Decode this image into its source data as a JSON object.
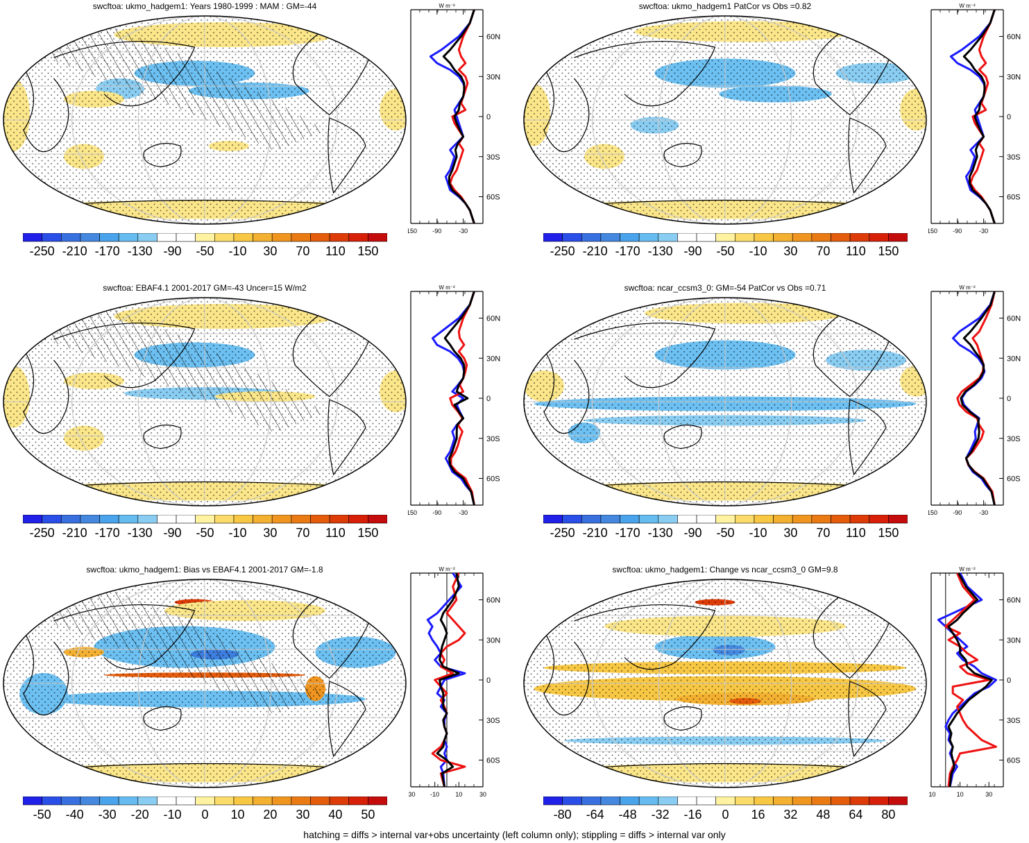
{
  "footer": "hatching = diffs > internal var+obs uncertainty (left column only); stippling = diffs > internal var only",
  "profile_unit": "W m⁻²",
  "lat_ticks": [
    "60N",
    "30N",
    "0",
    "30S",
    "60S"
  ],
  "colors": {
    "line_blue": "#1a1aff",
    "line_red": "#ee1111",
    "line_black": "#000000",
    "land": "#f8e08a"
  },
  "chart_data": [
    {
      "type": "heatmap",
      "title": "swcftoa: ukmo_hadgem1: Years 1980-1999 : MAM : GM=-44",
      "colorbar_labels": [
        "-250",
        "-210",
        "-170",
        "-130",
        "-90",
        "-50",
        "-10",
        "30",
        "70",
        "110",
        "150"
      ],
      "colorbar_colors": [
        "#2020e8",
        "#2a4ee8",
        "#3870e0",
        "#4488e0",
        "#4aa4ec",
        "#66bcf0",
        "#8acdf2",
        "#ffffff",
        "#ffffff",
        "#fff2a0",
        "#fbdc6a",
        "#f8c844",
        "#f4b030",
        "#f09620",
        "#ea7a14",
        "#e45c0c",
        "#dd3c08",
        "#d82008",
        "#c40c0c"
      ],
      "profile_ticks": [
        "-150",
        "-90",
        "-30"
      ],
      "profile_range": [
        -150,
        15
      ],
      "profile_zero_line": false,
      "profile": {
        "lat": [
          80,
          70,
          60,
          50,
          45,
          40,
          35,
          30,
          25,
          20,
          15,
          10,
          5,
          0,
          -5,
          -10,
          -15,
          -20,
          -25,
          -30,
          -35,
          -40,
          -45,
          -50,
          -55,
          -60,
          -65,
          -70,
          -80
        ],
        "blue": [
          -5,
          -15,
          -40,
          -80,
          -105,
          -90,
          -60,
          -40,
          -30,
          -25,
          -30,
          -40,
          -50,
          -45,
          -40,
          -35,
          -30,
          -45,
          -60,
          -50,
          -55,
          -60,
          -70,
          -65,
          -60,
          -40,
          -25,
          -15,
          -5
        ],
        "red": [
          -5,
          -15,
          -30,
          -40,
          -35,
          -25,
          -40,
          -25,
          -20,
          -25,
          -30,
          -35,
          -25,
          -55,
          -50,
          -40,
          -30,
          -40,
          -30,
          -35,
          -40,
          -45,
          -55,
          -60,
          -50,
          -35,
          -25,
          -15,
          -5
        ],
        "black": [
          -5,
          -15,
          -35,
          -60,
          -75,
          -60,
          -50,
          -35,
          -28,
          -28,
          -30,
          -38,
          -40,
          -50,
          -45,
          -38,
          -30,
          -42,
          -48,
          -45,
          -50,
          -55,
          -62,
          -62,
          -55,
          -38,
          -25,
          -15,
          -5
        ]
      }
    },
    {
      "type": "heatmap",
      "title": "swcftoa: ukmo_hadgem1 PatCor vs Obs =0.82",
      "colorbar_labels": [
        "-250",
        "-210",
        "-170",
        "-130",
        "-90",
        "-50",
        "-10",
        "30",
        "70",
        "110",
        "150"
      ],
      "colorbar_colors": [
        "#2020e8",
        "#2a4ee8",
        "#3870e0",
        "#4488e0",
        "#4aa4ec",
        "#66bcf0",
        "#8acdf2",
        "#ffffff",
        "#ffffff",
        "#fff2a0",
        "#fbdc6a",
        "#f8c844",
        "#f4b030",
        "#f09620",
        "#ea7a14",
        "#e45c0c",
        "#dd3c08",
        "#d82008",
        "#c40c0c"
      ],
      "profile_ticks": [
        "-150",
        "-90",
        "-30"
      ],
      "profile_range": [
        -150,
        15
      ],
      "profile_zero_line": false,
      "profile": {
        "lat": [
          80,
          70,
          60,
          50,
          45,
          40,
          35,
          30,
          25,
          20,
          15,
          10,
          5,
          0,
          -5,
          -10,
          -15,
          -20,
          -25,
          -30,
          -35,
          -40,
          -45,
          -50,
          -55,
          -60,
          -65,
          -70,
          -80
        ],
        "blue": [
          -5,
          -15,
          -40,
          -80,
          -105,
          -90,
          -60,
          -40,
          -30,
          -25,
          -30,
          -40,
          -50,
          -45,
          -40,
          -35,
          -30,
          -45,
          -60,
          -50,
          -55,
          -60,
          -70,
          -65,
          -60,
          -40,
          -25,
          -15,
          -5
        ],
        "red": [
          -5,
          -15,
          -30,
          -40,
          -35,
          -25,
          -40,
          -25,
          -20,
          -25,
          -30,
          -35,
          -25,
          -55,
          -50,
          -40,
          -30,
          -40,
          -30,
          -35,
          -40,
          -45,
          -55,
          -60,
          -50,
          -35,
          -25,
          -15,
          -5
        ],
        "black": [
          -5,
          -15,
          -35,
          -60,
          -75,
          -60,
          -50,
          -35,
          -28,
          -28,
          -30,
          -38,
          -40,
          -50,
          -45,
          -38,
          -30,
          -42,
          -48,
          -45,
          -50,
          -55,
          -62,
          -62,
          -55,
          -38,
          -25,
          -15,
          -5
        ]
      }
    },
    {
      "type": "heatmap",
      "title": "swcftoa: EBAF4.1 2001-2017 GM=-43 Uncer=15 W/m2",
      "colorbar_labels": [
        "-250",
        "-210",
        "-170",
        "-130",
        "-90",
        "-50",
        "-10",
        "30",
        "70",
        "110",
        "150"
      ],
      "colorbar_colors": [
        "#2020e8",
        "#2a4ee8",
        "#3870e0",
        "#4488e0",
        "#4aa4ec",
        "#66bcf0",
        "#8acdf2",
        "#ffffff",
        "#ffffff",
        "#fff2a0",
        "#fbdc6a",
        "#f8c844",
        "#f4b030",
        "#f09620",
        "#ea7a14",
        "#e45c0c",
        "#dd3c08",
        "#d82008",
        "#c40c0c"
      ],
      "profile_ticks": [
        "-150",
        "-90",
        "-30"
      ],
      "profile_range": [
        -150,
        15
      ],
      "profile_zero_line": false,
      "profile": {
        "lat": [
          80,
          70,
          60,
          50,
          45,
          40,
          35,
          30,
          25,
          20,
          15,
          10,
          5,
          0,
          -5,
          -10,
          -15,
          -20,
          -25,
          -30,
          -35,
          -40,
          -45,
          -50,
          -55,
          -60,
          -65,
          -70,
          -80
        ],
        "blue": [
          -5,
          -15,
          -40,
          -80,
          -100,
          -90,
          -60,
          -42,
          -32,
          -28,
          -30,
          -42,
          -55,
          -30,
          -45,
          -38,
          -30,
          -45,
          -55,
          -50,
          -55,
          -60,
          -70,
          -62,
          -55,
          -35,
          -25,
          -12,
          -5
        ],
        "red": [
          -5,
          -15,
          -30,
          -40,
          -38,
          -28,
          -40,
          -28,
          -22,
          -25,
          -30,
          -38,
          -30,
          -60,
          -55,
          -42,
          -32,
          -42,
          -32,
          -38,
          -42,
          -48,
          -58,
          -58,
          -45,
          -25,
          -18,
          -10,
          -5
        ],
        "black": [
          -5,
          -15,
          -35,
          -60,
          -72,
          -60,
          -50,
          -36,
          -28,
          -28,
          -30,
          -40,
          -45,
          -20,
          -50,
          -40,
          -30,
          -44,
          -45,
          -45,
          -50,
          -55,
          -62,
          -60,
          -50,
          -30,
          -22,
          -12,
          -5
        ]
      }
    },
    {
      "type": "heatmap",
      "title": "swcftoa: ncar_ccsm3_0: GM=-54 PatCor vs Obs =0.71",
      "colorbar_labels": [
        "-250",
        "-210",
        "-170",
        "-130",
        "-90",
        "-50",
        "-10",
        "30",
        "70",
        "110",
        "150"
      ],
      "colorbar_colors": [
        "#2020e8",
        "#2a4ee8",
        "#3870e0",
        "#4488e0",
        "#4aa4ec",
        "#66bcf0",
        "#8acdf2",
        "#ffffff",
        "#ffffff",
        "#fff2a0",
        "#fbdc6a",
        "#f8c844",
        "#f4b030",
        "#f09620",
        "#ea7a14",
        "#e45c0c",
        "#dd3c08",
        "#d82008",
        "#c40c0c"
      ],
      "profile_ticks": [
        "-150",
        "-90",
        "-30"
      ],
      "profile_range": [
        -150,
        15
      ],
      "profile_zero_line": false,
      "profile": {
        "lat": [
          80,
          70,
          60,
          50,
          45,
          40,
          35,
          30,
          25,
          20,
          15,
          10,
          5,
          0,
          -5,
          -10,
          -15,
          -20,
          -25,
          -30,
          -35,
          -40,
          -45,
          -50,
          -55,
          -60,
          -65,
          -70,
          -80
        ],
        "blue": [
          -5,
          -15,
          -40,
          -85,
          -100,
          -85,
          -60,
          -42,
          -32,
          -28,
          -35,
          -50,
          -70,
          -80,
          -75,
          -60,
          -40,
          -45,
          -50,
          -48,
          -55,
          -62,
          -70,
          -65,
          -55,
          -35,
          -25,
          -12,
          -5
        ],
        "red": [
          -5,
          -12,
          -25,
          -40,
          -55,
          -45,
          -40,
          -35,
          -30,
          -32,
          -40,
          -60,
          -80,
          -90,
          -85,
          -70,
          -45,
          -40,
          -30,
          -35,
          -45,
          -55,
          -70,
          -65,
          -50,
          -30,
          -20,
          -10,
          -5
        ],
        "black": [
          -5,
          -14,
          -35,
          -60,
          -75,
          -60,
          -50,
          -38,
          -30,
          -30,
          -38,
          -52,
          -72,
          -82,
          -78,
          -62,
          -42,
          -42,
          -40,
          -42,
          -50,
          -58,
          -70,
          -64,
          -52,
          -32,
          -22,
          -12,
          -5
        ]
      }
    },
    {
      "type": "heatmap",
      "title": "swcftoa: ukmo_hadgem1: Bias vs EBAF4.1 2001-2017 GM=-1.8",
      "colorbar_labels": [
        "-50",
        "-40",
        "-30",
        "-20",
        "-10",
        "0",
        "10",
        "20",
        "30",
        "40",
        "50"
      ],
      "colorbar_colors": [
        "#2020e8",
        "#2a4ee8",
        "#3870e0",
        "#4488e0",
        "#4aa4ec",
        "#66bcf0",
        "#8acdf2",
        "#ffffff",
        "#ffffff",
        "#fff2a0",
        "#fbdc6a",
        "#f8c844",
        "#f4b030",
        "#f09620",
        "#ea7a14",
        "#e45c0c",
        "#dd3c08",
        "#d82008",
        "#c40c0c"
      ],
      "profile_ticks": [
        "-30",
        "-10",
        "10",
        "30"
      ],
      "profile_range": [
        -30,
        30
      ],
      "profile_zero_line": true,
      "profile": {
        "lat": [
          80,
          70,
          60,
          50,
          45,
          40,
          35,
          30,
          25,
          20,
          15,
          10,
          5,
          0,
          -5,
          -10,
          -15,
          -20,
          -25,
          -30,
          -35,
          -40,
          -45,
          -50,
          -55,
          -60,
          -65,
          -70,
          -80
        ],
        "blue": [
          5,
          12,
          2,
          -8,
          -16,
          -12,
          -15,
          -12,
          -8,
          -5,
          -10,
          -5,
          15,
          -2,
          -5,
          -8,
          -2,
          -5,
          0,
          -2,
          -2,
          0,
          -2,
          0,
          -2,
          0,
          -5,
          -3,
          -2
        ],
        "red": [
          10,
          5,
          8,
          0,
          5,
          10,
          15,
          10,
          0,
          -5,
          -2,
          -5,
          5,
          -10,
          -5,
          0,
          -5,
          -2,
          0,
          -3,
          -2,
          0,
          -2,
          -5,
          -12,
          -5,
          15,
          -5,
          -2
        ],
        "black": [
          8,
          10,
          5,
          -3,
          -5,
          -2,
          0,
          -2,
          -4,
          -5,
          -6,
          -3,
          10,
          -6,
          -5,
          -3,
          -3,
          -3,
          0,
          -3,
          -2,
          0,
          -2,
          -3,
          -8,
          0,
          5,
          -4,
          -2
        ]
      }
    },
    {
      "type": "heatmap",
      "title": "swcftoa: ukmo_hadgem1: Change vs ncar_ccsm3_0 GM=9.8",
      "colorbar_labels": [
        "-80",
        "-64",
        "-48",
        "-32",
        "-16",
        "0",
        "16",
        "32",
        "48",
        "64",
        "80"
      ],
      "colorbar_colors": [
        "#2020e8",
        "#2a4ee8",
        "#3870e0",
        "#4488e0",
        "#4aa4ec",
        "#66bcf0",
        "#8acdf2",
        "#ffffff",
        "#ffffff",
        "#fff2a0",
        "#fbdc6a",
        "#f8c844",
        "#f4b030",
        "#f09620",
        "#ea7a14",
        "#e45c0c",
        "#dd3c08",
        "#d82008",
        "#c40c0c"
      ],
      "profile_ticks": [
        "-10",
        "10",
        "30"
      ],
      "profile_range": [
        -10,
        40
      ],
      "profile_zero_line": true,
      "profile": {
        "lat": [
          80,
          70,
          60,
          50,
          45,
          40,
          35,
          30,
          25,
          20,
          15,
          10,
          5,
          0,
          -5,
          -10,
          -15,
          -20,
          -25,
          -30,
          -35,
          -40,
          -45,
          -50,
          -55,
          -60,
          -65,
          -70,
          -80
        ],
        "blue": [
          10,
          15,
          25,
          5,
          -5,
          0,
          5,
          10,
          15,
          8,
          12,
          20,
          25,
          35,
          30,
          20,
          15,
          10,
          5,
          2,
          0,
          3,
          2,
          5,
          3,
          5,
          8,
          5,
          3
        ],
        "red": [
          8,
          12,
          20,
          10,
          5,
          0,
          10,
          2,
          10,
          15,
          22,
          10,
          15,
          30,
          5,
          5,
          12,
          8,
          10,
          12,
          15,
          20,
          25,
          35,
          10,
          8,
          5,
          3,
          2
        ],
        "black": [
          9,
          14,
          22,
          12,
          8,
          2,
          5,
          8,
          10,
          10,
          14,
          15,
          20,
          32,
          28,
          22,
          16,
          12,
          8,
          5,
          2,
          4,
          3,
          5,
          4,
          5,
          6,
          4,
          3
        ]
      }
    }
  ]
}
